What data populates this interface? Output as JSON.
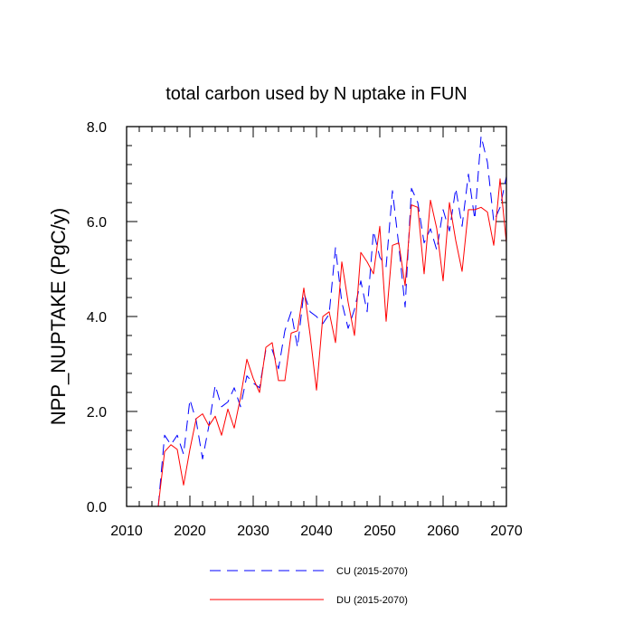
{
  "chart_data": {
    "type": "line",
    "title": "total carbon used by N uptake in FUN",
    "xlabel": "",
    "ylabel": "NPP_NUPTAKE  (PgC/y)",
    "xlim": [
      2010,
      2070
    ],
    "ylim": [
      0,
      8
    ],
    "xticks": [
      2010,
      2020,
      2030,
      2040,
      2050,
      2060,
      2070
    ],
    "yticks": [
      0,
      2,
      4,
      6,
      8
    ],
    "xtick_labels": [
      "2010",
      "2020",
      "2030",
      "2040",
      "2050",
      "2060",
      "2070"
    ],
    "ytick_labels": [
      "0.0",
      "2.0",
      "4.0",
      "6.0",
      "8.0"
    ],
    "legend_position": "bottom-center",
    "x": [
      2015,
      2016,
      2017,
      2018,
      2019,
      2020,
      2021,
      2022,
      2023,
      2024,
      2025,
      2026,
      2027,
      2028,
      2029,
      2030,
      2031,
      2032,
      2033,
      2034,
      2035,
      2036,
      2037,
      2038,
      2039,
      2040,
      2041,
      2042,
      2043,
      2044,
      2045,
      2046,
      2047,
      2048,
      2049,
      2050,
      2051,
      2052,
      2053,
      2054,
      2055,
      2056,
      2057,
      2058,
      2059,
      2060,
      2061,
      2062,
      2063,
      2064,
      2065,
      2066,
      2067,
      2068,
      2069,
      2070
    ],
    "series": [
      {
        "name": "CU (2015-2070)",
        "style": "dashed",
        "color": "#0000ff",
        "values": [
          0.0,
          1.5,
          1.3,
          1.5,
          1.1,
          2.25,
          1.8,
          1.0,
          1.7,
          2.55,
          2.1,
          2.2,
          2.5,
          2.1,
          2.75,
          2.6,
          2.5,
          3.3,
          3.3,
          2.9,
          3.7,
          4.1,
          3.35,
          4.5,
          4.1,
          4.0,
          3.85,
          4.05,
          5.45,
          4.3,
          3.75,
          4.15,
          4.75,
          4.1,
          5.8,
          5.25,
          5.05,
          6.65,
          5.5,
          4.2,
          6.7,
          6.4,
          5.55,
          5.85,
          5.4,
          6.25,
          5.8,
          6.7,
          5.9,
          7.0,
          6.05,
          7.8,
          7.25,
          6.0,
          6.3,
          6.95
        ]
      },
      {
        "name": "DU (2015-2070)",
        "style": "solid",
        "color": "#ff0000",
        "values": [
          0.0,
          1.15,
          1.3,
          1.2,
          0.45,
          1.2,
          1.85,
          1.95,
          1.7,
          1.9,
          1.5,
          2.05,
          1.65,
          2.3,
          3.1,
          2.7,
          2.4,
          3.35,
          3.45,
          2.65,
          2.65,
          3.65,
          3.7,
          4.6,
          3.6,
          2.45,
          4.0,
          4.1,
          3.45,
          5.15,
          4.3,
          3.6,
          5.35,
          5.15,
          4.9,
          5.9,
          3.9,
          5.5,
          5.55,
          4.65,
          6.35,
          6.3,
          4.9,
          6.45,
          5.85,
          4.75,
          6.4,
          5.6,
          4.95,
          6.25,
          6.25,
          6.3,
          6.2,
          5.5,
          6.9,
          5.55
        ]
      }
    ]
  }
}
